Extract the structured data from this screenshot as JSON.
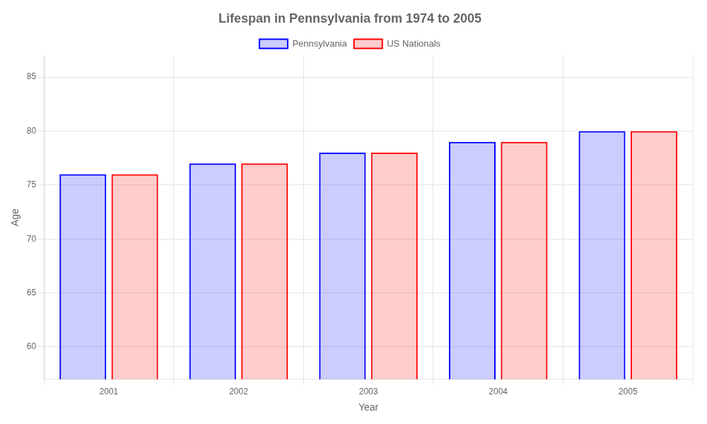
{
  "chart_data": {
    "type": "bar",
    "title": "Lifespan in Pennsylvania from 1974 to 2005",
    "categories": [
      "2001",
      "2002",
      "2003",
      "2004",
      "2005"
    ],
    "series": [
      {
        "name": "Pennsylvania",
        "color": "#0000ff",
        "values": [
          76,
          77,
          78,
          79,
          80
        ]
      },
      {
        "name": "US Nationals",
        "color": "#ff0000",
        "values": [
          76,
          77,
          78,
          79,
          80
        ]
      }
    ],
    "x_label": "Year",
    "y_label": "Age",
    "ylim": [
      57,
      87
    ],
    "yticks": [
      60,
      65,
      70,
      75,
      80,
      85
    ],
    "grid": true,
    "legend": "top"
  }
}
